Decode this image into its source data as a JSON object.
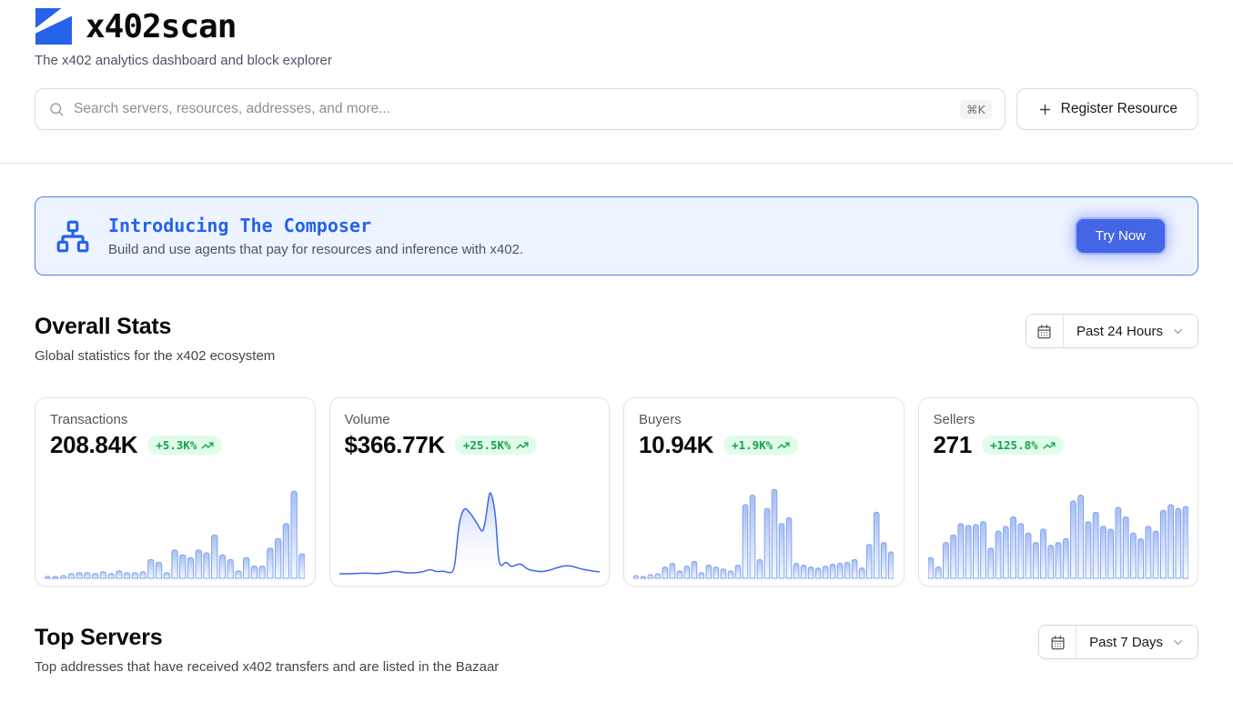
{
  "brand": {
    "app_name": "x402scan",
    "tagline": "The x402 analytics dashboard and block explorer"
  },
  "search": {
    "placeholder": "Search servers, resources, addresses, and more...",
    "shortcut": "⌘K"
  },
  "actions": {
    "register_resource": "Register Resource"
  },
  "banner": {
    "title": "Introducing The Composer",
    "description": "Build and use agents that pay for resources and inference with x402.",
    "cta": "Try Now"
  },
  "overall_stats": {
    "title": "Overall Stats",
    "subtitle": "Global statistics for the x402 ecosystem",
    "time_range": "Past 24 Hours",
    "cards": [
      {
        "label": "Transactions",
        "value": "208.84K",
        "change": "+5.3K%",
        "trend": "up"
      },
      {
        "label": "Volume",
        "value": "$366.77K",
        "change": "+25.5K%",
        "trend": "up"
      },
      {
        "label": "Buyers",
        "value": "10.94K",
        "change": "+1.9K%",
        "trend": "up"
      },
      {
        "label": "Sellers",
        "value": "271",
        "change": "+125.8%",
        "trend": "up"
      }
    ]
  },
  "top_servers": {
    "title": "Top Servers",
    "subtitle": "Top addresses that have received x402 transfers and are listed in the Bazaar",
    "time_range": "Past 7 Days"
  },
  "colors": {
    "accent": "#2563eb",
    "banner_bg": "#eef4ff",
    "banner_border": "#4d7ef3",
    "cta_bg": "#4365e6",
    "positive_text": "#16a34a",
    "positive_bg": "#dcfce7",
    "bar_stroke": "#84a3ee",
    "bar_fill_top": "#a6c0f5",
    "line_stroke": "#3e68e8"
  },
  "chart_data": [
    {
      "type": "bar",
      "metric": "Transactions",
      "period": "Past 24 Hours",
      "style": "sparkline, no axes or gridlines, rounded light-blue gradient bars",
      "unit": "percent of max bar height",
      "values": [
        2,
        2,
        3,
        5,
        6,
        6,
        5,
        7,
        5,
        8,
        6,
        6,
        7,
        20,
        17,
        6,
        30,
        25,
        22,
        30,
        27,
        46,
        25,
        20,
        8,
        22,
        13,
        13,
        32,
        42,
        58,
        92,
        26
      ]
    },
    {
      "type": "area",
      "metric": "Volume",
      "period": "Past 24 Hours",
      "style": "sparkline smooth line with light-blue gradient area fill, no axes",
      "unit": "x is percent of width, y is percent of max height",
      "points": [
        [
          0,
          3
        ],
        [
          5,
          3
        ],
        [
          10,
          4
        ],
        [
          14,
          3
        ],
        [
          18,
          4
        ],
        [
          22,
          6
        ],
        [
          25,
          4
        ],
        [
          29,
          4
        ],
        [
          32,
          5
        ],
        [
          35,
          8
        ],
        [
          37,
          5
        ],
        [
          40,
          6
        ],
        [
          42,
          4
        ],
        [
          44,
          5
        ],
        [
          45,
          30
        ],
        [
          46,
          60
        ],
        [
          48,
          76
        ],
        [
          50,
          70
        ],
        [
          52,
          62
        ],
        [
          54,
          52
        ],
        [
          55,
          48
        ],
        [
          56,
          58
        ],
        [
          57,
          80
        ],
        [
          58,
          96
        ],
        [
          60,
          70
        ],
        [
          61,
          20
        ],
        [
          62,
          10
        ],
        [
          64,
          17
        ],
        [
          66,
          10
        ],
        [
          68,
          13
        ],
        [
          70,
          14
        ],
        [
          72,
          8
        ],
        [
          75,
          6
        ],
        [
          78,
          5
        ],
        [
          81,
          7
        ],
        [
          84,
          10
        ],
        [
          87,
          12
        ],
        [
          90,
          11
        ],
        [
          93,
          8
        ],
        [
          97,
          6
        ],
        [
          100,
          5
        ]
      ]
    },
    {
      "type": "bar",
      "metric": "Buyers",
      "period": "Past 24 Hours",
      "style": "sparkline, no axes or gridlines, rounded light-blue gradient bars",
      "unit": "percent of max bar height",
      "values": [
        3,
        2,
        4,
        5,
        12,
        16,
        8,
        13,
        18,
        6,
        14,
        12,
        10,
        8,
        14,
        78,
        88,
        20,
        74,
        94,
        58,
        64,
        16,
        14,
        12,
        11,
        13,
        15,
        16,
        17,
        20,
        11,
        36,
        70,
        38,
        28
      ]
    },
    {
      "type": "bar",
      "metric": "Sellers",
      "period": "Past 24 Hours",
      "style": "sparkline, no axes or gridlines, rounded light-blue gradient bars",
      "unit": "percent of max bar height",
      "values": [
        22,
        12,
        38,
        46,
        58,
        56,
        57,
        60,
        32,
        50,
        55,
        65,
        58,
        48,
        38,
        52,
        35,
        38,
        42,
        82,
        88,
        60,
        70,
        55,
        52,
        75,
        65,
        48,
        42,
        55,
        50,
        72,
        78,
        74,
        76
      ]
    }
  ]
}
